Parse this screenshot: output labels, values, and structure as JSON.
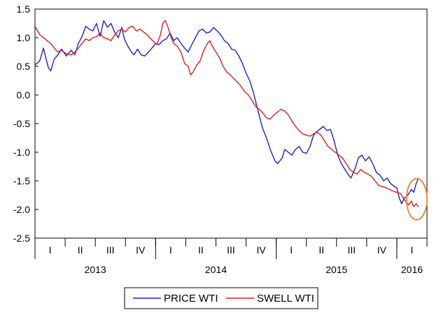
{
  "chart_data": {
    "type": "line",
    "title": "",
    "xlabel": "",
    "ylabel": "",
    "ylim": [
      -2.5,
      1.5
    ],
    "y_ticks": [
      "1.5",
      "1.0",
      "0.5",
      "0.0",
      "-0.5",
      "-1.0",
      "-1.5",
      "-2.0",
      "-2.5"
    ],
    "x_range": [
      2013.0,
      2016.25
    ],
    "quarter_ticks": [
      {
        "label": "I",
        "x": 2013.125
      },
      {
        "label": "II",
        "x": 2013.375
      },
      {
        "label": "III",
        "x": 2013.625
      },
      {
        "label": "IV",
        "x": 2013.875
      },
      {
        "label": "I",
        "x": 2014.125
      },
      {
        "label": "II",
        "x": 2014.375
      },
      {
        "label": "III",
        "x": 2014.625
      },
      {
        "label": "IV",
        "x": 2014.875
      },
      {
        "label": "I",
        "x": 2015.125
      },
      {
        "label": "II",
        "x": 2015.375
      },
      {
        "label": "III",
        "x": 2015.625
      },
      {
        "label": "IV",
        "x": 2015.875
      },
      {
        "label": "I",
        "x": 2016.125
      }
    ],
    "year_labels": [
      {
        "label": "2013",
        "x": 2013.5
      },
      {
        "label": "2014",
        "x": 2014.5
      },
      {
        "label": "2015",
        "x": 2015.5
      },
      {
        "label": "2016",
        "x": 2016.125
      }
    ],
    "series": [
      {
        "name": "PRICE WTI",
        "color": "#1f1fd6",
        "points": [
          [
            2013.0,
            0.52
          ],
          [
            2013.04,
            0.6
          ],
          [
            2013.07,
            0.82
          ],
          [
            2013.09,
            0.65
          ],
          [
            2013.11,
            0.48
          ],
          [
            2013.13,
            0.42
          ],
          [
            2013.16,
            0.63
          ],
          [
            2013.19,
            0.7
          ],
          [
            2013.22,
            0.8
          ],
          [
            2013.26,
            0.68
          ],
          [
            2013.3,
            0.78
          ],
          [
            2013.33,
            0.7
          ],
          [
            2013.36,
            0.9
          ],
          [
            2013.39,
            1.02
          ],
          [
            2013.42,
            1.2
          ],
          [
            2013.45,
            1.15
          ],
          [
            2013.48,
            1.12
          ],
          [
            2013.51,
            1.25
          ],
          [
            2013.54,
            1.02
          ],
          [
            2013.57,
            1.3
          ],
          [
            2013.6,
            1.18
          ],
          [
            2013.63,
            1.25
          ],
          [
            2013.66,
            1.1
          ],
          [
            2013.69,
            1.0
          ],
          [
            2013.72,
            1.18
          ],
          [
            2013.74,
            0.98
          ],
          [
            2013.77,
            0.85
          ],
          [
            2013.8,
            0.75
          ],
          [
            2013.82,
            0.7
          ],
          [
            2013.85,
            0.8
          ],
          [
            2013.88,
            0.7
          ],
          [
            2013.91,
            0.68
          ],
          [
            2013.94,
            0.75
          ],
          [
            2013.97,
            0.82
          ],
          [
            2014.0,
            0.9
          ],
          [
            2014.03,
            0.88
          ],
          [
            2014.06,
            0.95
          ],
          [
            2014.09,
            0.98
          ],
          [
            2014.12,
            1.08
          ],
          [
            2014.15,
            0.95
          ],
          [
            2014.18,
            1.0
          ],
          [
            2014.21,
            0.9
          ],
          [
            2014.24,
            0.82
          ],
          [
            2014.27,
            0.75
          ],
          [
            2014.3,
            0.88
          ],
          [
            2014.33,
            1.0
          ],
          [
            2014.36,
            1.12
          ],
          [
            2014.39,
            1.15
          ],
          [
            2014.42,
            1.08
          ],
          [
            2014.45,
            1.1
          ],
          [
            2014.48,
            1.18
          ],
          [
            2014.51,
            1.12
          ],
          [
            2014.54,
            1.05
          ],
          [
            2014.57,
            0.95
          ],
          [
            2014.6,
            0.9
          ],
          [
            2014.63,
            0.8
          ],
          [
            2014.66,
            0.78
          ],
          [
            2014.69,
            0.68
          ],
          [
            2014.72,
            0.55
          ],
          [
            2014.75,
            0.38
          ],
          [
            2014.78,
            0.25
          ],
          [
            2014.81,
            0.05
          ],
          [
            2014.84,
            -0.2
          ],
          [
            2014.87,
            -0.45
          ],
          [
            2014.89,
            -0.6
          ],
          [
            2014.91,
            -0.7
          ],
          [
            2014.93,
            -0.82
          ],
          [
            2014.95,
            -0.95
          ],
          [
            2014.97,
            -1.05
          ],
          [
            2014.99,
            -1.15
          ],
          [
            2015.01,
            -1.2
          ],
          [
            2015.03,
            -1.15
          ],
          [
            2015.05,
            -1.1
          ],
          [
            2015.07,
            -0.95
          ],
          [
            2015.1,
            -1.0
          ],
          [
            2015.13,
            -1.05
          ],
          [
            2015.16,
            -0.95
          ],
          [
            2015.19,
            -0.9
          ],
          [
            2015.22,
            -1.0
          ],
          [
            2015.25,
            -1.02
          ],
          [
            2015.28,
            -0.9
          ],
          [
            2015.31,
            -0.7
          ],
          [
            2015.33,
            -0.65
          ],
          [
            2015.36,
            -0.6
          ],
          [
            2015.39,
            -0.55
          ],
          [
            2015.42,
            -0.62
          ],
          [
            2015.45,
            -0.6
          ],
          [
            2015.48,
            -0.8
          ],
          [
            2015.51,
            -1.05
          ],
          [
            2015.54,
            -1.2
          ],
          [
            2015.57,
            -1.3
          ],
          [
            2015.6,
            -1.4
          ],
          [
            2015.62,
            -1.45
          ],
          [
            2015.64,
            -1.35
          ],
          [
            2015.66,
            -1.25
          ],
          [
            2015.68,
            -1.1
          ],
          [
            2015.71,
            -1.05
          ],
          [
            2015.74,
            -1.15
          ],
          [
            2015.77,
            -1.08
          ],
          [
            2015.8,
            -1.2
          ],
          [
            2015.83,
            -1.35
          ],
          [
            2015.86,
            -1.4
          ],
          [
            2015.89,
            -1.5
          ],
          [
            2015.92,
            -1.45
          ],
          [
            2015.95,
            -1.55
          ],
          [
            2015.98,
            -1.6
          ],
          [
            2016.0,
            -1.62
          ],
          [
            2016.02,
            -1.8
          ],
          [
            2016.04,
            -1.9
          ],
          [
            2016.06,
            -1.8
          ],
          [
            2016.08,
            -1.78
          ],
          [
            2016.1,
            -1.72
          ],
          [
            2016.12,
            -1.65
          ],
          [
            2016.14,
            -1.7
          ],
          [
            2016.16,
            -1.55
          ],
          [
            2016.18,
            -1.45
          ]
        ]
      },
      {
        "name": "SWELL WTI",
        "color": "#e31b1b",
        "points": [
          [
            2013.0,
            1.2
          ],
          [
            2013.04,
            1.05
          ],
          [
            2013.07,
            1.0
          ],
          [
            2013.1,
            0.95
          ],
          [
            2013.13,
            0.9
          ],
          [
            2013.16,
            0.82
          ],
          [
            2013.19,
            0.75
          ],
          [
            2013.22,
            0.78
          ],
          [
            2013.26,
            0.72
          ],
          [
            2013.3,
            0.7
          ],
          [
            2013.33,
            0.75
          ],
          [
            2013.36,
            0.82
          ],
          [
            2013.39,
            0.9
          ],
          [
            2013.42,
            0.98
          ],
          [
            2013.45,
            0.95
          ],
          [
            2013.48,
            1.0
          ],
          [
            2013.51,
            1.02
          ],
          [
            2013.54,
            1.08
          ],
          [
            2013.57,
            1.0
          ],
          [
            2013.6,
            0.98
          ],
          [
            2013.63,
            0.95
          ],
          [
            2013.66,
            1.05
          ],
          [
            2013.69,
            1.12
          ],
          [
            2013.72,
            1.15
          ],
          [
            2013.75,
            1.1
          ],
          [
            2013.78,
            1.18
          ],
          [
            2013.81,
            1.2
          ],
          [
            2013.84,
            1.12
          ],
          [
            2013.87,
            1.15
          ],
          [
            2013.9,
            1.1
          ],
          [
            2013.93,
            1.05
          ],
          [
            2013.96,
            0.98
          ],
          [
            2013.99,
            0.92
          ],
          [
            2014.01,
            0.88
          ],
          [
            2014.04,
            1.05
          ],
          [
            2014.06,
            1.25
          ],
          [
            2014.08,
            1.3
          ],
          [
            2014.1,
            1.2
          ],
          [
            2014.13,
            1.0
          ],
          [
            2014.15,
            0.9
          ],
          [
            2014.18,
            0.85
          ],
          [
            2014.21,
            0.75
          ],
          [
            2014.24,
            0.55
          ],
          [
            2014.27,
            0.5
          ],
          [
            2014.29,
            0.35
          ],
          [
            2014.31,
            0.4
          ],
          [
            2014.34,
            0.52
          ],
          [
            2014.37,
            0.6
          ],
          [
            2014.4,
            0.78
          ],
          [
            2014.43,
            0.9
          ],
          [
            2014.45,
            0.95
          ],
          [
            2014.47,
            0.85
          ],
          [
            2014.5,
            0.75
          ],
          [
            2014.53,
            0.65
          ],
          [
            2014.56,
            0.5
          ],
          [
            2014.59,
            0.4
          ],
          [
            2014.62,
            0.35
          ],
          [
            2014.65,
            0.28
          ],
          [
            2014.68,
            0.22
          ],
          [
            2014.71,
            0.15
          ],
          [
            2014.74,
            0.05
          ],
          [
            2014.77,
            0.0
          ],
          [
            2014.8,
            -0.1
          ],
          [
            2014.83,
            -0.2
          ],
          [
            2014.86,
            -0.25
          ],
          [
            2014.89,
            -0.32
          ],
          [
            2014.92,
            -0.4
          ],
          [
            2014.95,
            -0.42
          ],
          [
            2014.98,
            -0.35
          ],
          [
            2015.01,
            -0.3
          ],
          [
            2015.04,
            -0.25
          ],
          [
            2015.07,
            -0.28
          ],
          [
            2015.1,
            -0.35
          ],
          [
            2015.13,
            -0.45
          ],
          [
            2015.16,
            -0.55
          ],
          [
            2015.19,
            -0.62
          ],
          [
            2015.22,
            -0.68
          ],
          [
            2015.25,
            -0.7
          ],
          [
            2015.28,
            -0.72
          ],
          [
            2015.31,
            -0.68
          ],
          [
            2015.34,
            -0.65
          ],
          [
            2015.37,
            -0.7
          ],
          [
            2015.4,
            -0.8
          ],
          [
            2015.43,
            -0.9
          ],
          [
            2015.46,
            -0.95
          ],
          [
            2015.49,
            -1.0
          ],
          [
            2015.52,
            -1.05
          ],
          [
            2015.55,
            -1.1
          ],
          [
            2015.58,
            -1.2
          ],
          [
            2015.61,
            -1.3
          ],
          [
            2015.64,
            -1.35
          ],
          [
            2015.67,
            -1.38
          ],
          [
            2015.7,
            -1.3
          ],
          [
            2015.73,
            -1.35
          ],
          [
            2015.76,
            -1.38
          ],
          [
            2015.79,
            -1.42
          ],
          [
            2015.82,
            -1.5
          ],
          [
            2015.85,
            -1.58
          ],
          [
            2015.88,
            -1.6
          ],
          [
            2015.91,
            -1.62
          ],
          [
            2015.94,
            -1.65
          ],
          [
            2015.97,
            -1.68
          ],
          [
            2016.0,
            -1.7
          ],
          [
            2016.03,
            -1.72
          ],
          [
            2016.06,
            -1.82
          ],
          [
            2016.08,
            -1.88
          ],
          [
            2016.1,
            -1.92
          ],
          [
            2016.12,
            -1.85
          ],
          [
            2016.14,
            -1.95
          ],
          [
            2016.16,
            -1.9
          ],
          [
            2016.18,
            -1.95
          ]
        ]
      }
    ],
    "annotation": {
      "type": "ellipse",
      "color": "#ef8a32",
      "x_center": 2016.165,
      "y_center": -1.82,
      "x_radius": 0.085,
      "y_radius": 0.36
    }
  }
}
